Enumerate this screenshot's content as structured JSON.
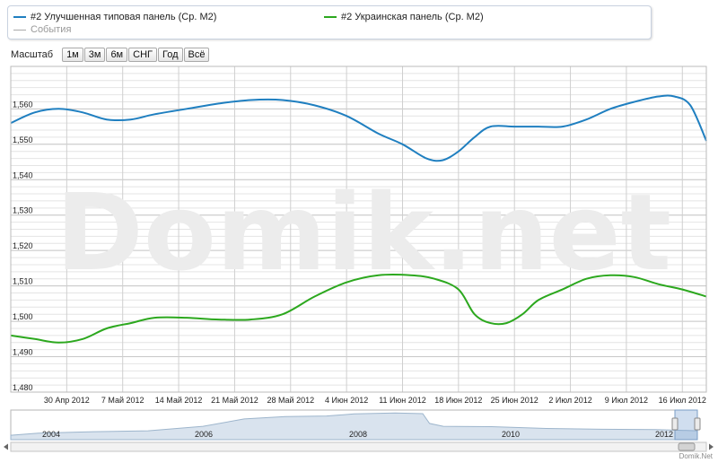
{
  "legend": {
    "series": [
      {
        "label": "#2 Улучшенная типовая панель (Ср. М2)",
        "color": "#1f7fc0"
      },
      {
        "label": "#2 Украинская панель (Ср. М2)",
        "color": "#2ca81e"
      }
    ],
    "events_label": "События",
    "events_color": "#aaaaaa"
  },
  "zoom": {
    "label": "Масштаб",
    "buttons": [
      "1м",
      "3м",
      "6м",
      "СНГ",
      "Год",
      "Всё"
    ]
  },
  "watermark": "Domik.net",
  "credit": "Domik.Net",
  "chart_data": {
    "type": "line",
    "x_unit": "days since 2012-04-23",
    "x_domain": [
      0,
      87
    ],
    "ylim": [
      1480,
      1572
    ],
    "y_ticks": [
      {
        "v": 1480,
        "label": "1,480"
      },
      {
        "v": 1490,
        "label": "1,490"
      },
      {
        "v": 1500,
        "label": "1,500"
      },
      {
        "v": 1510,
        "label": "1,510"
      },
      {
        "v": 1520,
        "label": "1,520"
      },
      {
        "v": 1530,
        "label": "1,530"
      },
      {
        "v": 1540,
        "label": "1,540"
      },
      {
        "v": 1550,
        "label": "1,550"
      },
      {
        "v": 1560,
        "label": "1,560"
      }
    ],
    "x_ticks": [
      {
        "d": 7,
        "label": "30 Апр 2012"
      },
      {
        "d": 14,
        "label": "7 Май 2012"
      },
      {
        "d": 21,
        "label": "14 Май 2012"
      },
      {
        "d": 28,
        "label": "21 Май 2012"
      },
      {
        "d": 35,
        "label": "28 Май 2012"
      },
      {
        "d": 42,
        "label": "4 Июн 2012"
      },
      {
        "d": 49,
        "label": "11 Июн 2012"
      },
      {
        "d": 56,
        "label": "18 Июн 2012"
      },
      {
        "d": 63,
        "label": "25 Июн 2012"
      },
      {
        "d": 70,
        "label": "2 Июл 2012"
      },
      {
        "d": 77,
        "label": "9 Июл 2012"
      },
      {
        "d": 84,
        "label": "16 Июл 2012"
      }
    ],
    "series": [
      {
        "name": "#2 Улучшенная типовая панель (Ср. М2)",
        "color": "#1f7fc0",
        "points": [
          [
            0,
            1556
          ],
          [
            3,
            1559
          ],
          [
            6,
            1560
          ],
          [
            9,
            1559
          ],
          [
            12,
            1557
          ],
          [
            15,
            1557
          ],
          [
            18,
            1558.5
          ],
          [
            22,
            1560
          ],
          [
            26,
            1561.5
          ],
          [
            30,
            1562.5
          ],
          [
            34,
            1562.5
          ],
          [
            38,
            1561
          ],
          [
            42,
            1558
          ],
          [
            46,
            1553
          ],
          [
            49,
            1550
          ],
          [
            52,
            1546
          ],
          [
            54,
            1545.5
          ],
          [
            56,
            1548
          ],
          [
            58,
            1552
          ],
          [
            60,
            1555
          ],
          [
            63,
            1555
          ],
          [
            66,
            1555
          ],
          [
            69,
            1555
          ],
          [
            72,
            1557
          ],
          [
            75,
            1560
          ],
          [
            78,
            1562
          ],
          [
            81,
            1563.5
          ],
          [
            83,
            1563.5
          ],
          [
            85,
            1561
          ],
          [
            87,
            1551
          ]
        ]
      },
      {
        "name": "#2 Украинская панель (Ср. М2)",
        "color": "#2ca81e",
        "points": [
          [
            0,
            1496
          ],
          [
            3,
            1495
          ],
          [
            6,
            1494
          ],
          [
            9,
            1495
          ],
          [
            12,
            1498
          ],
          [
            15,
            1499.5
          ],
          [
            18,
            1501
          ],
          [
            22,
            1501
          ],
          [
            26,
            1500.5
          ],
          [
            30,
            1500.5
          ],
          [
            34,
            1502
          ],
          [
            38,
            1507
          ],
          [
            42,
            1511
          ],
          [
            46,
            1513
          ],
          [
            50,
            1513
          ],
          [
            53,
            1512
          ],
          [
            56,
            1509
          ],
          [
            58,
            1502
          ],
          [
            60,
            1499.5
          ],
          [
            62,
            1499.5
          ],
          [
            64,
            1502
          ],
          [
            66,
            1506
          ],
          [
            69,
            1509
          ],
          [
            72,
            1512
          ],
          [
            75,
            1513
          ],
          [
            78,
            1512.5
          ],
          [
            81,
            1510.5
          ],
          [
            84,
            1509
          ],
          [
            87,
            1507
          ]
        ]
      }
    ],
    "navigator": {
      "labels": [
        "2004",
        "2006",
        "2008",
        "2010",
        "2012"
      ]
    }
  }
}
